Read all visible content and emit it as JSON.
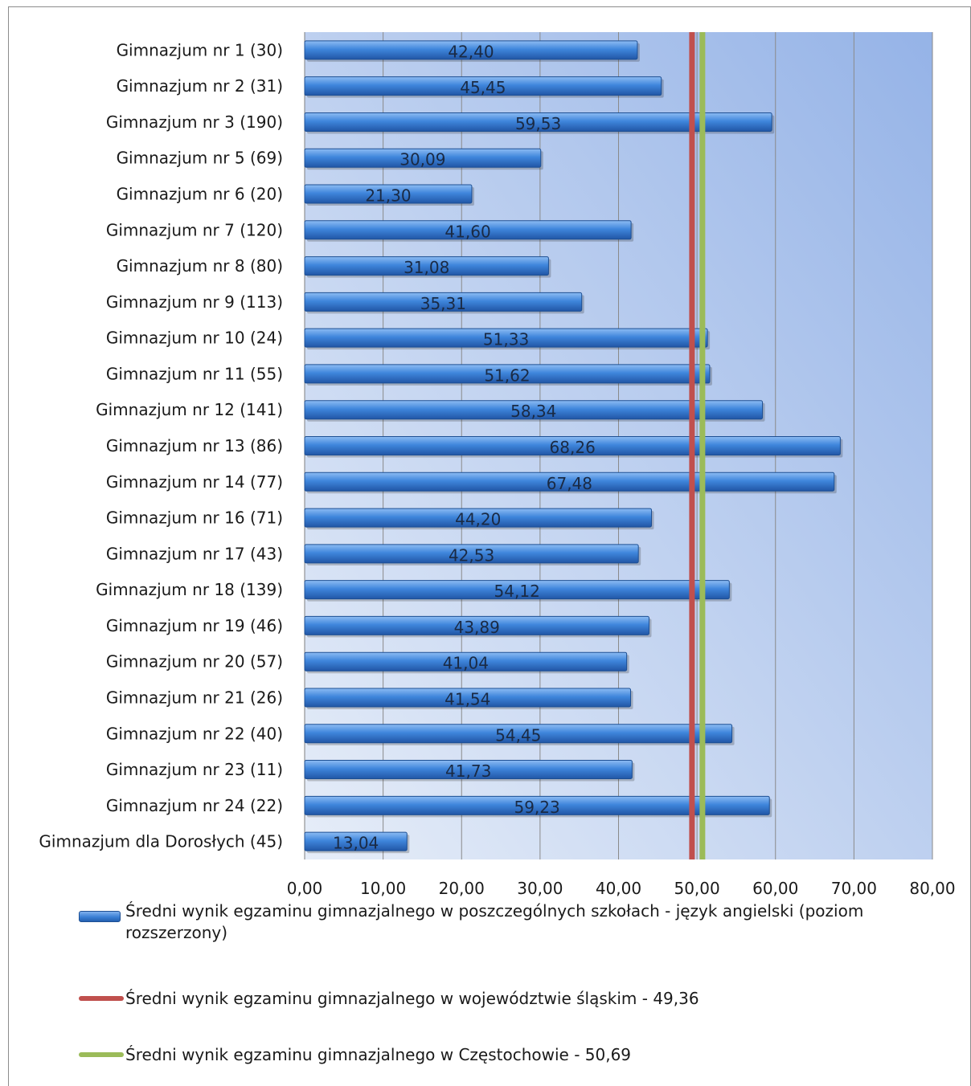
{
  "chart_data": {
    "type": "bar",
    "orientation": "horizontal",
    "categories": [
      "Gimnazjum nr 1 (30)",
      "Gimnazjum nr 2  (31)",
      "Gimnazjum nr 3 (190)",
      "Gimnazjum nr 5 (69)",
      "Gimnazjum nr 6 (20)",
      "Gimnazjum nr 7 (120)",
      "Gimnazjum nr 8 (80)",
      "Gimnazjum nr 9 (113)",
      "Gimnazjum nr 10 (24)",
      "Gimnazjum nr 11 (55)",
      "Gimnazjum nr 12 (141)",
      "Gimnazjum nr 13 (86)",
      "Gimnazjum nr 14 (77)",
      "Gimnazjum nr 16 (71)",
      "Gimnazjum nr 17 (43)",
      "Gimnazjum nr 18 (139)",
      "Gimnazjum nr 19 (46)",
      "Gimnazjum nr 20 (57)",
      "Gimnazjum nr 21 (26)",
      "Gimnazjum nr 22 (40)",
      "Gimnazjum nr 23 (11)",
      "Gimnazjum nr 24 (22)",
      "Gimnazjum dla Dorosłych (45)"
    ],
    "values": [
      42.4,
      45.45,
      59.53,
      30.09,
      21.3,
      41.6,
      31.08,
      35.31,
      51.33,
      51.62,
      58.34,
      68.26,
      67.48,
      44.2,
      42.53,
      54.12,
      43.89,
      41.04,
      41.54,
      54.45,
      41.73,
      59.23,
      13.04
    ],
    "value_labels": [
      "42,40",
      "45,45",
      "59,53",
      "30,09",
      "21,30",
      "41,60",
      "31,08",
      "35,31",
      "51,33",
      "51,62",
      "58,34",
      "68,26",
      "67,48",
      "44,20",
      "42,53",
      "54,12",
      "43,89",
      "41,04",
      "41,54",
      "54,45",
      "41,73",
      "59,23",
      "13,04"
    ],
    "xlim": [
      0,
      80
    ],
    "x_ticks": [
      "0,00",
      "10,00",
      "20,00",
      "30,00",
      "40,00",
      "50,00",
      "60,00",
      "70,00",
      "80,00"
    ],
    "reference_lines": [
      {
        "value": 49.36,
        "color": "#c0504d"
      },
      {
        "value": 50.69,
        "color": "#9bbb59"
      }
    ],
    "bar_color": "#3a7fd5",
    "grid": true,
    "legend_position": "bottom",
    "legend": [
      "Średni wynik egzaminu gimnazjalnego w poszczególnych szkołach - język angielski (poziom rozszerzony)",
      "Średni wynik egzaminu gimnazjalnego w województwie śląskim - 49,36",
      "Średni wynik egzaminu gimnazjalnego w Częstochowie - 50,69"
    ]
  }
}
